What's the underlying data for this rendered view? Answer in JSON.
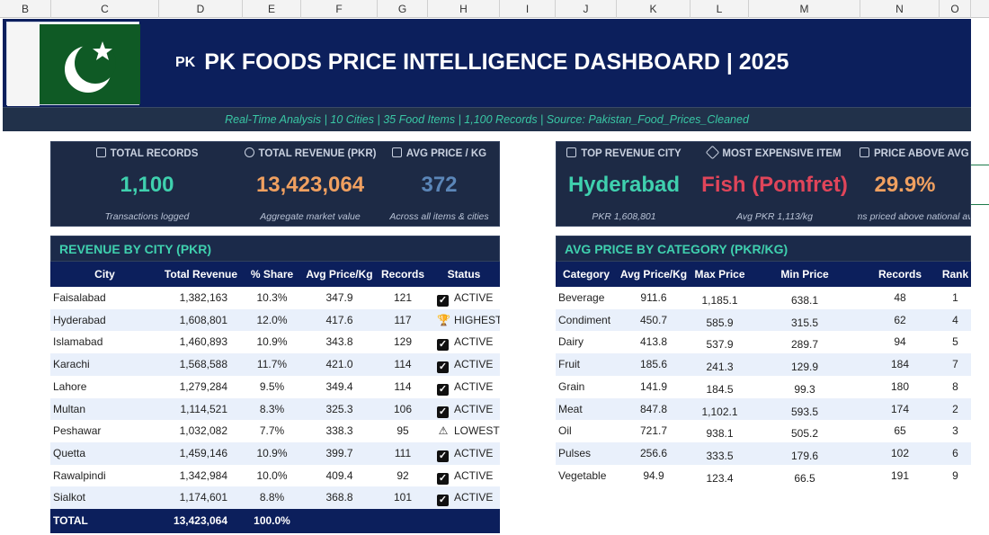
{
  "columns": [
    "B",
    "C",
    "D",
    "E",
    "F",
    "G",
    "H",
    "I",
    "J",
    "K",
    "L",
    "M",
    "N",
    "O"
  ],
  "header": {
    "pk_badge": "PK",
    "title": "PK FOODS PRICE INTELLIGENCE DASHBOARD  |  2025",
    "subtitle": "Real-Time Analysis  |  10 Cities  |  35 Food Items  |  1,100 Records  |  Source: Pakistan_Food_Prices_Cleaned"
  },
  "kpis": [
    {
      "label": "TOTAL RECORDS",
      "icon": "document-icon",
      "value": "1,100",
      "sub": "Transactions logged",
      "color": "#3fd0ae"
    },
    {
      "label": "TOTAL REVENUE (PKR)",
      "icon": "medal-icon",
      "value": "13,423,064",
      "sub": "Aggregate market value",
      "color": "#f0a060"
    },
    {
      "label": "AVG PRICE / KG",
      "icon": "check-icon",
      "value": "372",
      "sub": "Across all items & cities",
      "color": "#5b86b8"
    },
    {
      "label": "TOP REVENUE CITY",
      "icon": "building-icon",
      "value": "Hyderabad",
      "sub": "PKR 1,608,801",
      "color": "#3fd0ae"
    },
    {
      "label": "MOST EXPENSIVE ITEM",
      "icon": "tag-icon",
      "value": "Fish (Pomfret)",
      "sub": "Avg PKR 1,113/kg",
      "color": "#e0455a"
    },
    {
      "label": "PRICE ABOVE AVG %",
      "icon": "grid-icon",
      "value": "29.9%",
      "sub": "Items priced above national avg",
      "color": "#f0a060"
    }
  ],
  "city_table": {
    "title": "REVENUE BY CITY (PKR)",
    "headers": [
      "City",
      "Total Revenue",
      "% Share",
      "Avg Price/Kg",
      "Records",
      "Status"
    ],
    "rows": [
      {
        "city": "Faisalabad",
        "revenue": "1,382,163",
        "share": "10.3%",
        "avg": "347.9",
        "records": "121",
        "status": "ACTIVE",
        "status_icon": "check"
      },
      {
        "city": "Hyderabad",
        "revenue": "1,608,801",
        "share": "12.0%",
        "avg": "417.6",
        "records": "117",
        "status": "HIGHEST",
        "status_icon": "trophy"
      },
      {
        "city": "Islamabad",
        "revenue": "1,460,893",
        "share": "10.9%",
        "avg": "343.8",
        "records": "129",
        "status": "ACTIVE",
        "status_icon": "check"
      },
      {
        "city": "Karachi",
        "revenue": "1,568,588",
        "share": "11.7%",
        "avg": "421.0",
        "records": "114",
        "status": "ACTIVE",
        "status_icon": "check"
      },
      {
        "city": "Lahore",
        "revenue": "1,279,284",
        "share": "9.5%",
        "avg": "349.4",
        "records": "114",
        "status": "ACTIVE",
        "status_icon": "check"
      },
      {
        "city": "Multan",
        "revenue": "1,114,521",
        "share": "8.3%",
        "avg": "325.3",
        "records": "106",
        "status": "ACTIVE",
        "status_icon": "check"
      },
      {
        "city": "Peshawar",
        "revenue": "1,032,082",
        "share": "7.7%",
        "avg": "338.3",
        "records": "95",
        "status": "LOWEST",
        "status_icon": "warning"
      },
      {
        "city": "Quetta",
        "revenue": "1,459,146",
        "share": "10.9%",
        "avg": "399.7",
        "records": "111",
        "status": "ACTIVE",
        "status_icon": "check"
      },
      {
        "city": "Rawalpindi",
        "revenue": "1,342,984",
        "share": "10.0%",
        "avg": "409.4",
        "records": "92",
        "status": "ACTIVE",
        "status_icon": "check"
      },
      {
        "city": "Sialkot",
        "revenue": "1,174,601",
        "share": "8.8%",
        "avg": "368.8",
        "records": "101",
        "status": "ACTIVE",
        "status_icon": "check"
      }
    ],
    "total": {
      "label": "TOTAL",
      "revenue": "13,423,064",
      "share": "100.0%"
    }
  },
  "category_table": {
    "title": "AVG PRICE BY CATEGORY (PKR/KG)",
    "headers": [
      "Category",
      "Avg Price/Kg",
      "Max Price",
      "Min Price",
      "Records",
      "Rank"
    ],
    "rows": [
      {
        "category": "Beverage",
        "avg": "911.6",
        "max": "1,185.1",
        "min": "638.1",
        "records": "48",
        "rank": "1"
      },
      {
        "category": "Condiment",
        "avg": "450.7",
        "max": "585.9",
        "min": "315.5",
        "records": "62",
        "rank": "4"
      },
      {
        "category": "Dairy",
        "avg": "413.8",
        "max": "537.9",
        "min": "289.7",
        "records": "94",
        "rank": "5"
      },
      {
        "category": "Fruit",
        "avg": "185.6",
        "max": "241.3",
        "min": "129.9",
        "records": "184",
        "rank": "7"
      },
      {
        "category": "Grain",
        "avg": "141.9",
        "max": "184.5",
        "min": "99.3",
        "records": "180",
        "rank": "8"
      },
      {
        "category": "Meat",
        "avg": "847.8",
        "max": "1,102.1",
        "min": "593.5",
        "records": "174",
        "rank": "2"
      },
      {
        "category": "Oil",
        "avg": "721.7",
        "max": "938.1",
        "min": "505.2",
        "records": "65",
        "rank": "3"
      },
      {
        "category": "Pulses",
        "avg": "256.6",
        "max": "333.5",
        "min": "179.6",
        "records": "102",
        "rank": "6"
      },
      {
        "category": "Vegetable",
        "avg": "94.9",
        "max": "123.4",
        "min": "66.5",
        "records": "191",
        "rank": "9"
      }
    ]
  }
}
